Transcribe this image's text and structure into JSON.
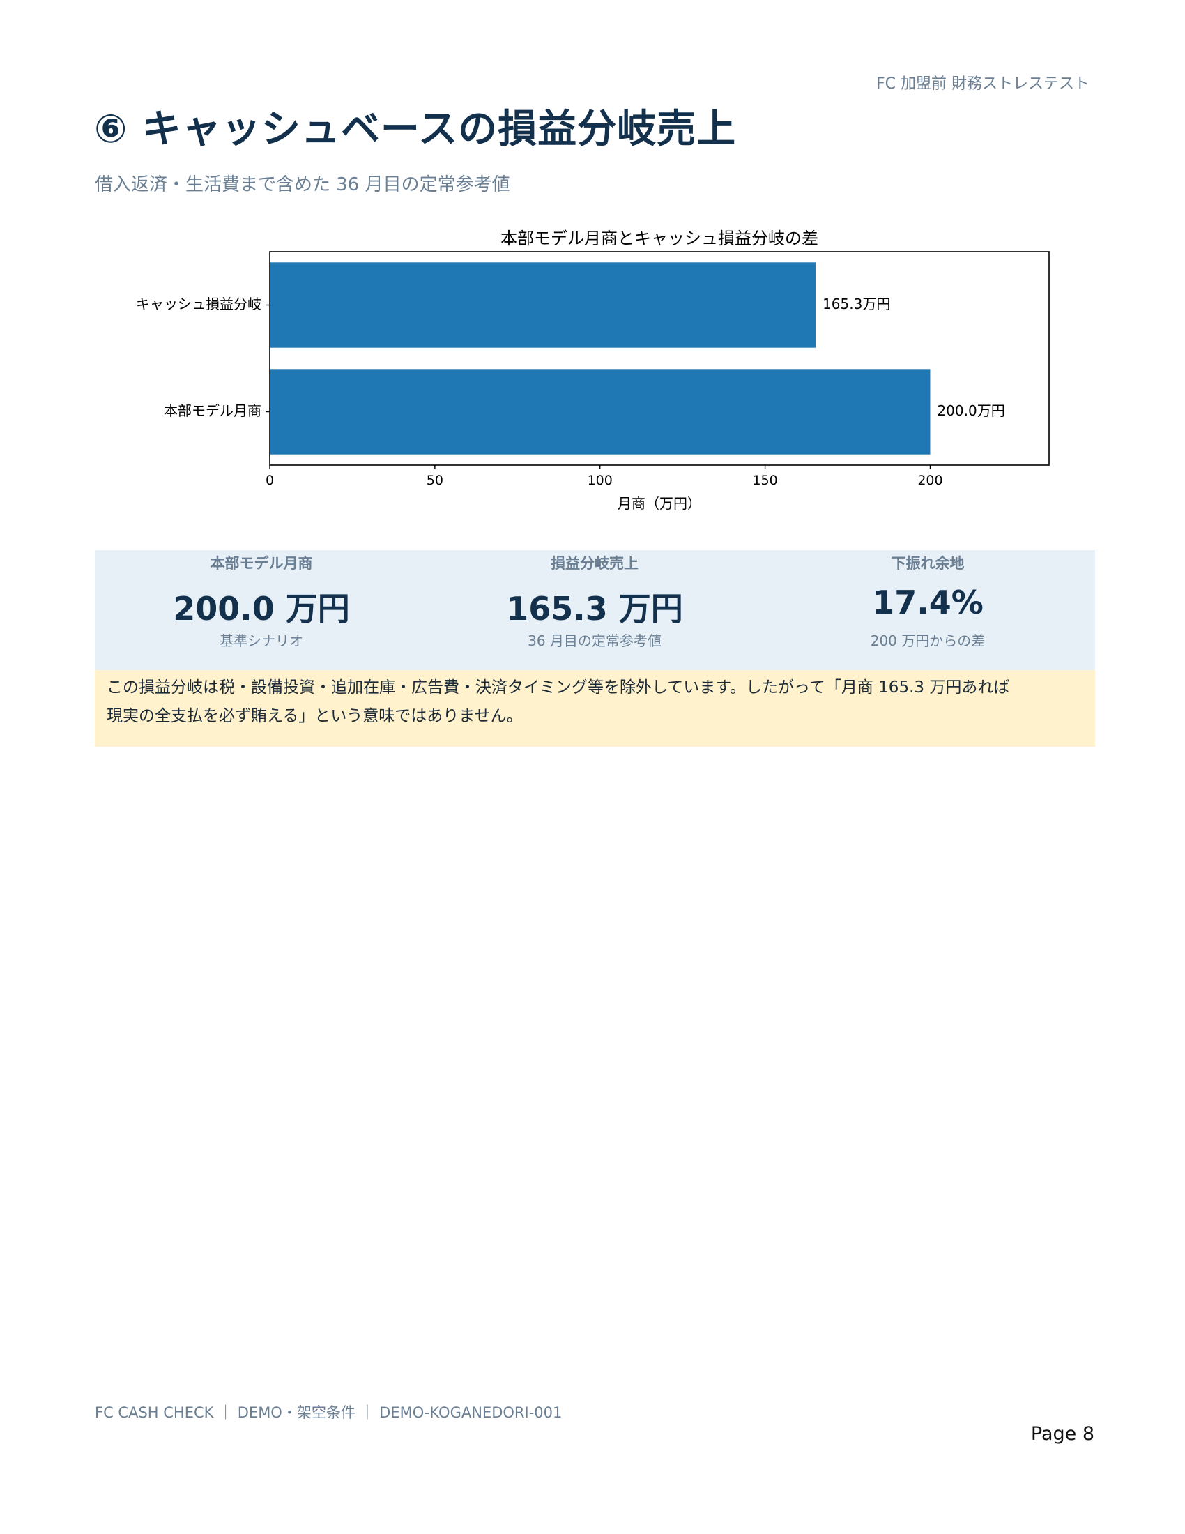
{
  "header": {
    "right_text": "FC 加盟前 財務ストレステスト"
  },
  "page_title": "⑥ キャッシュベースの損益分岐売上",
  "subtitle": "借入返済・生活費まで含めた 36 月目の定常参考値",
  "chart_data": {
    "type": "bar",
    "orientation": "horizontal",
    "title": "本部モデル月商とキャッシュ損益分岐の差",
    "categories": [
      "キャッシュ損益分岐",
      "本部モデル月商"
    ],
    "values": [
      165.3,
      200.0
    ],
    "data_labels": [
      "165.3万円",
      "200.0万円"
    ],
    "xlabel": "月商（万円）",
    "ylabel": "",
    "xlim": [
      0,
      236
    ],
    "xticks": [
      0,
      50,
      100,
      150,
      200
    ],
    "grid": false,
    "bar_color": "#1f77b4"
  },
  "kpis": [
    {
      "label": "本部モデル月商",
      "value": "200.0 万円",
      "note": "基準シナリオ"
    },
    {
      "label": "損益分岐売上",
      "value": "165.3 万円",
      "note": "36 月目の定常参考値"
    },
    {
      "label": "下振れ余地",
      "value": "17.4%",
      "note": "200 万円からの差"
    }
  ],
  "note": {
    "line1": "この損益分岐は税・設備投資・追加在庫・広告費・決済タイミング等を除外しています。したがって「月商 165.3 万円あれば",
    "line2": "現実の全支払を必ず賄える」という意味ではありません。"
  },
  "footer": {
    "left_text": "FC CASH CHECK ｜ DEMO・架空条件 ｜ DEMO-KOGANEDORI-001",
    "page_label": "Page 8"
  }
}
